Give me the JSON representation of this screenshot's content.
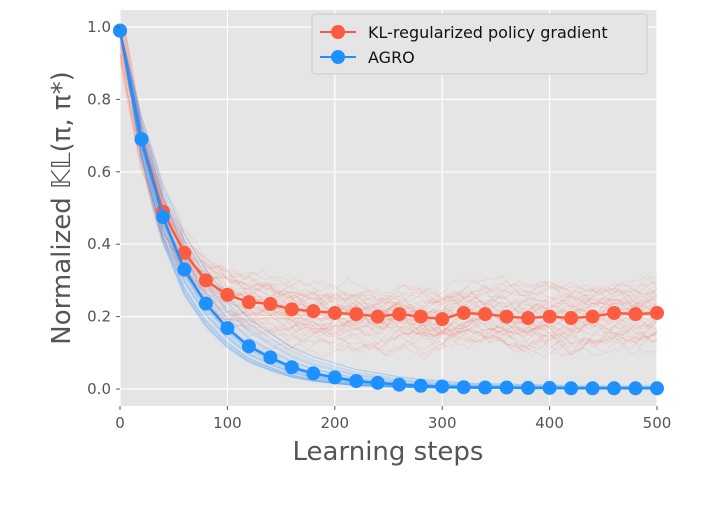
{
  "chart_data": {
    "type": "line",
    "xlabel": "Learning steps",
    "ylabel": "Normalized 𝕂𝕃(π, π*)",
    "xlim": [
      0,
      500
    ],
    "ylim": [
      -0.05,
      1.05
    ],
    "xticks": [
      "0",
      "100",
      "200",
      "300",
      "400",
      "500"
    ],
    "yticks": [
      "0.0",
      "0.2",
      "0.4",
      "0.6",
      "0.8",
      "1.0"
    ],
    "grid": true,
    "legend_position": "top-right",
    "x": [
      0,
      20,
      40,
      60,
      80,
      100,
      120,
      140,
      160,
      180,
      200,
      220,
      240,
      260,
      280,
      300,
      320,
      340,
      360,
      380,
      400,
      420,
      440,
      460,
      480,
      500
    ],
    "series": [
      {
        "name": "KL-regularized policy gradient",
        "color": "#fc5c3f",
        "values": [
          0.99,
          0.69,
          0.49,
          0.376,
          0.3,
          0.26,
          0.24,
          0.235,
          0.22,
          0.215,
          0.21,
          0.207,
          0.2,
          0.207,
          0.2,
          0.193,
          0.21,
          0.207,
          0.2,
          0.196,
          0.2,
          0.196,
          0.2,
          0.21,
          0.207,
          0.21
        ]
      },
      {
        "name": "AGRO",
        "color": "#1e90ff",
        "values": [
          0.99,
          0.69,
          0.475,
          0.33,
          0.236,
          0.168,
          0.118,
          0.087,
          0.06,
          0.043,
          0.032,
          0.022,
          0.017,
          0.012,
          0.009,
          0.007,
          0.005,
          0.004,
          0.004,
          0.003,
          0.003,
          0.002,
          0.002,
          0.002,
          0.002,
          0.002
        ]
      }
    ],
    "individual_runs_shown": true
  }
}
